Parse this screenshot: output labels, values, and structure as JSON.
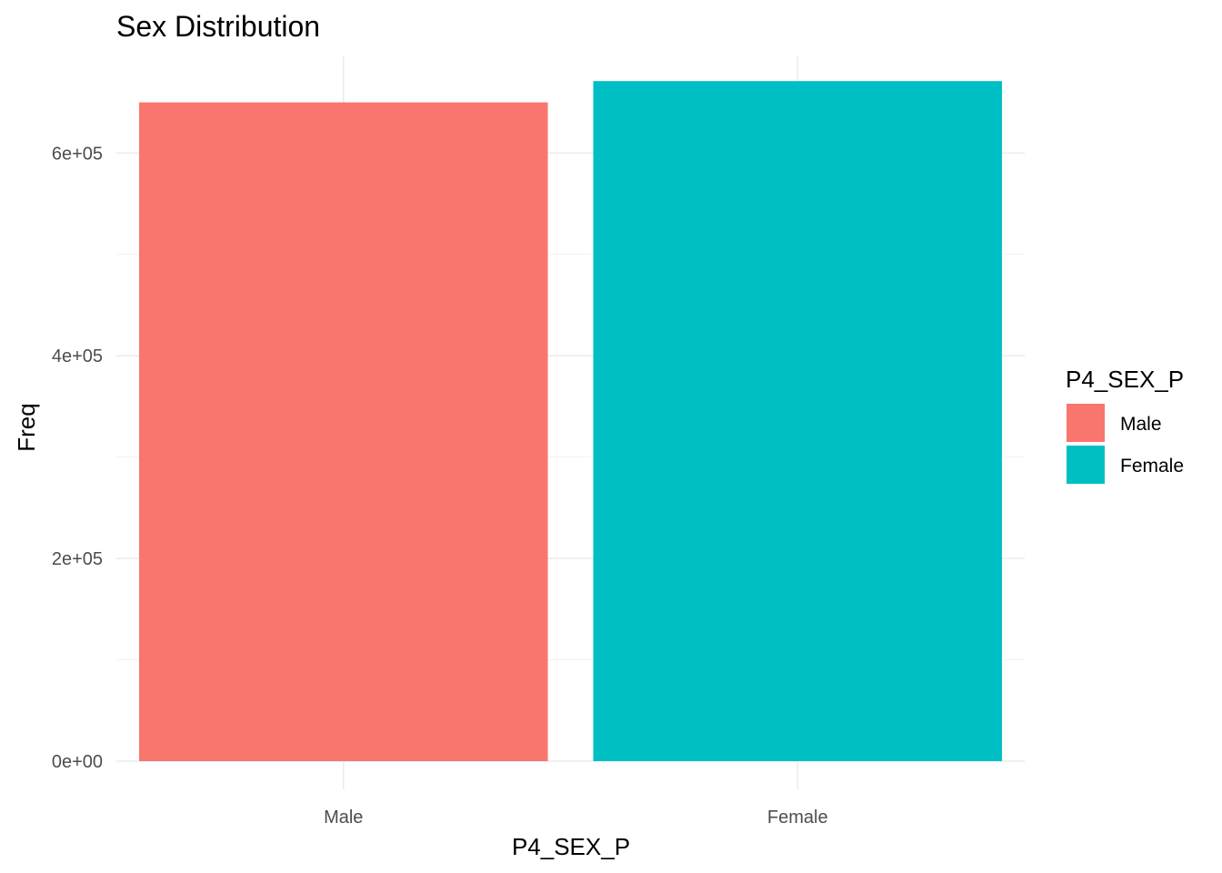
{
  "chart_data": {
    "type": "bar",
    "title": "Sex Distribution",
    "xlabel": "P4_SEX_P",
    "ylabel": "Freq",
    "categories": [
      "Male",
      "Female"
    ],
    "values": [
      650000,
      671000
    ],
    "colors": [
      "#F8766D",
      "#00BFC4"
    ],
    "ylim": [
      0,
      690000
    ],
    "yticks": [
      0,
      200000,
      400000,
      600000
    ],
    "ytick_labels": [
      "0e+00",
      "2e+05",
      "4e+05",
      "6e+05"
    ],
    "grid": true,
    "legend": {
      "title": "P4_SEX_P",
      "position": "right",
      "entries": [
        "Male",
        "Female"
      ]
    }
  }
}
